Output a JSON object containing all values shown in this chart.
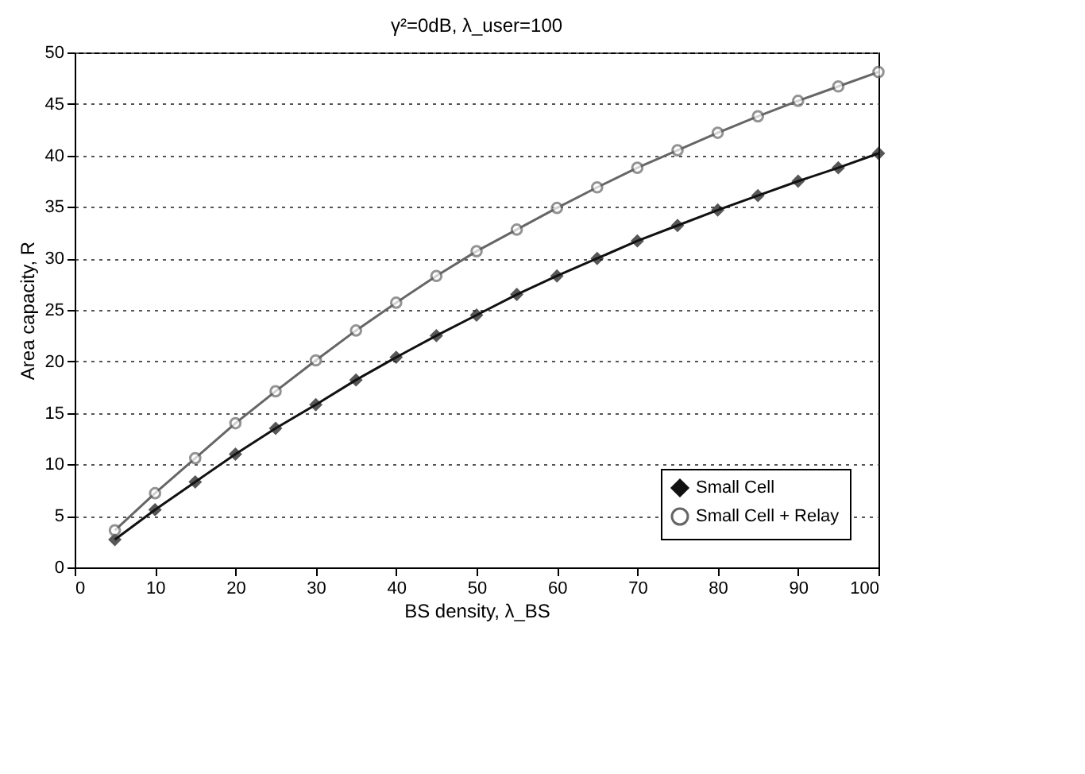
{
  "chart_data": {
    "type": "line",
    "title": "γ²=0dB, λ_user=100",
    "xlabel": "BS density, λ_BS",
    "ylabel": "Area capacity, R",
    "x": [
      5,
      10,
      15,
      20,
      25,
      30,
      35,
      40,
      45,
      50,
      55,
      60,
      65,
      70,
      75,
      80,
      85,
      90,
      95,
      100
    ],
    "series": [
      {
        "name": "Small Cell",
        "color": "#111111",
        "marker": "diamond",
        "values": [
          2.7,
          5.6,
          8.3,
          11.0,
          13.5,
          15.8,
          18.2,
          20.4,
          22.5,
          24.5,
          26.5,
          28.3,
          30.0,
          31.7,
          33.2,
          34.7,
          36.1,
          37.5,
          38.8,
          40.2
        ]
      },
      {
        "name": "Small Cell + Relay",
        "color": "#666666",
        "marker": "circle",
        "values": [
          3.6,
          7.2,
          10.6,
          14.0,
          17.1,
          20.1,
          23.0,
          25.7,
          28.3,
          30.7,
          32.8,
          34.9,
          36.9,
          38.8,
          40.5,
          42.2,
          43.8,
          45.3,
          46.7,
          48.1
        ]
      }
    ],
    "xlim": [
      0,
      100
    ],
    "xticks": [
      0,
      10,
      20,
      30,
      40,
      50,
      60,
      70,
      80,
      90,
      100
    ],
    "ylim": [
      0,
      50
    ],
    "yticks": [
      0,
      5,
      10,
      15,
      20,
      25,
      30,
      35,
      40,
      45,
      50
    ],
    "grid": "y",
    "legend": "bottom right",
    "line_style": "solid"
  }
}
